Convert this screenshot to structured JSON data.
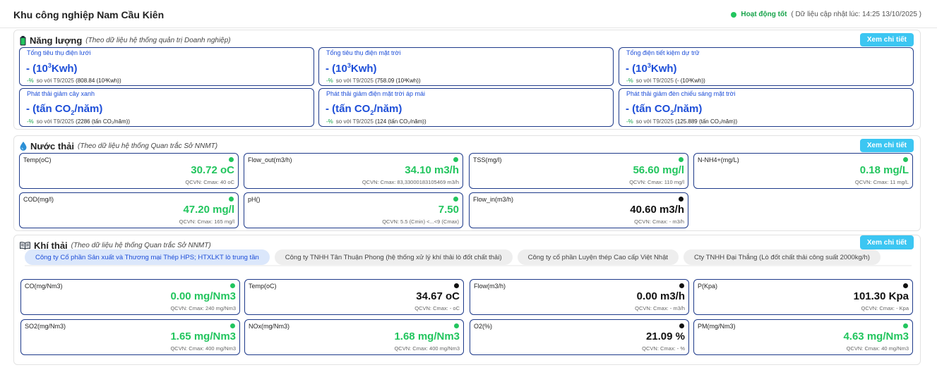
{
  "header": {
    "title": "Khu công nghiệp Nam Cầu Kiên",
    "status": "Hoạt động tốt",
    "updated": "( Dữ liệu cập nhật lúc: 14:25 13/10/2025 )"
  },
  "detail_label": "Xem chi tiết",
  "colors": {
    "accent": "#1d4ed8",
    "ok": "#22c55e",
    "button": "#3cc6f2"
  },
  "energy": {
    "icon": "battery-icon",
    "title": "Năng lượng",
    "subtitle": "(Theo dữ liệu hệ thống quản trị Doanh nghiệp)",
    "cards": [
      {
        "label": "Tổng tiêu thụ điện lưới",
        "value_prefix": "- (10",
        "value_sup": "3",
        "value_suffix": "Kwh)",
        "pct": "-%",
        "compare": "so với T9/2025",
        "prev": "(808.84 (10³Kwh))"
      },
      {
        "label": "Tổng tiêu thụ điện mặt trời",
        "value_prefix": "- (10",
        "value_sup": "3",
        "value_suffix": "Kwh)",
        "pct": "-%",
        "compare": "so với T9/2025",
        "prev": "(758.09 (10³Kwh))"
      },
      {
        "label": "Tổng điện tiết kiệm dự trữ",
        "value_prefix": "- (10",
        "value_sup": "3",
        "value_suffix": "Kwh)",
        "pct": "-%",
        "compare": "so với T9/2025",
        "prev": "(- (10³Kwh))"
      },
      {
        "label": "Phát thải giảm cây xanh",
        "value_prefix": "- (tấn CO",
        "value_sub": "2",
        "value_suffix": "/năm)",
        "pct": "-%",
        "compare": "so với T9/2025",
        "prev": "(2286 (tấn CO₂/năm))"
      },
      {
        "label": "Phát thải giảm điện mặt trời áp mái",
        "value_prefix": "- (tấn CO",
        "value_sub": "2",
        "value_suffix": "/năm)",
        "pct": "-%",
        "compare": "so với T9/2025",
        "prev": "(124 (tấn CO₂/năm))"
      },
      {
        "label": "Phát thải giảm đèn chiếu sáng mặt trời",
        "value_prefix": "- (tấn CO",
        "value_sub": "2",
        "value_suffix": "/năm)",
        "pct": "-%",
        "compare": "so với T9/2025",
        "prev": "(125.889 (tấn CO₂/năm))"
      }
    ]
  },
  "water": {
    "icon": "water-drop-icon",
    "title": "Nước thải",
    "subtitle": "(Theo dữ liệu hệ thống Quan trắc Sở NNMT)",
    "cards": [
      {
        "label": "Temp(oC)",
        "value": "30.72 oC",
        "limit": "QCVN: Cmax: 40 oC",
        "status": "green"
      },
      {
        "label": "Flow_out(m3/h)",
        "value": "34.10 m3/h",
        "limit": "QCVN: Cmax: 83,33000183105469 m3/h",
        "status": "green"
      },
      {
        "label": "TSS(mg/l)",
        "value": "56.60 mg/l",
        "limit": "QCVN: Cmax: 110 mg/l",
        "status": "green"
      },
      {
        "label": "N-NH4+(mg/L)",
        "value": "0.18 mg/L",
        "limit": "QCVN: Cmax: 11 mg/L",
        "status": "green"
      },
      {
        "label": "COD(mg/l)",
        "value": "47.20 mg/l",
        "limit": "QCVN: Cmax: 165 mg/l",
        "status": "green"
      },
      {
        "label": "pH()",
        "value": "7.50",
        "limit": "QCVN: 5.5 (Cmin) <...<9 (Cmax)",
        "status": "green"
      },
      {
        "label": "Flow_in(m3/h)",
        "value": "40.60 m3/h",
        "limit": "QCVN: Cmax: - m3/h",
        "status": "black"
      }
    ]
  },
  "air": {
    "icon": "book-icon",
    "title": "Khí thải",
    "subtitle": "(Theo dữ liệu hệ thống Quan trắc Sở NNMT)",
    "tabs": [
      "Công ty Cổ phần Sản xuất và Thương mại Thép HPS; HTXLKT lò trung tần",
      "Công ty TNHH Tân Thuận Phong (hệ thống xử lý khí thải lò đốt chất thải)",
      "Công ty cổ phần Luyện thép Cao cấp Việt Nhật",
      "Cty TNHH Đại Thắng (Lò đốt chất thải công suất 2000kg/h)"
    ],
    "active_tab": 0,
    "cards": [
      {
        "label": "CO(mg/Nm3)",
        "value": "0.00 mg/Nm3",
        "limit": "QCVN: Cmax: 240 mg/Nm3",
        "status": "green"
      },
      {
        "label": "Temp(oC)",
        "value": "34.67 oC",
        "limit": "QCVN: Cmax: - oC",
        "status": "black"
      },
      {
        "label": "Flow(m3/h)",
        "value": "0.00 m3/h",
        "limit": "QCVN: Cmax: - m3/h",
        "status": "black"
      },
      {
        "label": "P(Kpa)",
        "value": "101.30 Kpa",
        "limit": "QCVN: Cmax: - Kpa",
        "status": "black"
      },
      {
        "label": "SO2(mg/Nm3)",
        "value": "1.65 mg/Nm3",
        "limit": "QCVN: Cmax: 400 mg/Nm3",
        "status": "green"
      },
      {
        "label": "NOx(mg/Nm3)",
        "value": "1.68 mg/Nm3",
        "limit": "QCVN: Cmax: 400 mg/Nm3",
        "status": "green"
      },
      {
        "label": "O2(%)",
        "value": "21.09 %",
        "limit": "QCVN: Cmax: - %",
        "status": "black"
      },
      {
        "label": "PM(mg/Nm3)",
        "value": "4.63 mg/Nm3",
        "limit": "QCVN: Cmax: 40 mg/Nm3",
        "status": "green"
      }
    ]
  }
}
